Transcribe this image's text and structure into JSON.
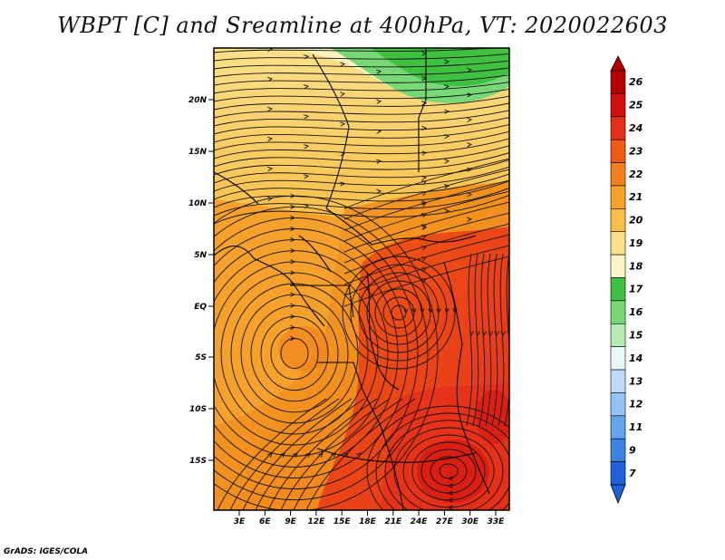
{
  "title": "WBPT [C] and Sreamline at 400hPa, VT: 2020022603",
  "credit": "GrADS: IGES/COLA",
  "map": {
    "lat_labels": [
      "20N",
      "15N",
      "10N",
      "5N",
      "EQ",
      "5S",
      "10S",
      "15S"
    ],
    "lon_labels": [
      "3E",
      "6E",
      "9E",
      "12E",
      "15E",
      "18E",
      "21E",
      "24E",
      "27E",
      "30E",
      "33E"
    ],
    "lon_range": [
      0,
      34
    ],
    "lat_range": [
      -20,
      24.5
    ]
  },
  "colorbar": {
    "levels": [
      "26",
      "25",
      "24",
      "23",
      "22",
      "21",
      "20",
      "19",
      "18",
      "17",
      "16",
      "15",
      "14",
      "13",
      "12",
      "11",
      "9",
      "7"
    ],
    "colors": [
      "#b40000",
      "#d01010",
      "#e4301a",
      "#f05a14",
      "#f2801e",
      "#f5a12c",
      "#f8c04a",
      "#fbe08a",
      "#fcf4c2",
      "#40c040",
      "#78d878",
      "#b4ecb4",
      "#e6f8f8",
      "#bcdcf8",
      "#94c4f4",
      "#64a4ec",
      "#3c84e4",
      "#2060dc"
    ]
  }
}
